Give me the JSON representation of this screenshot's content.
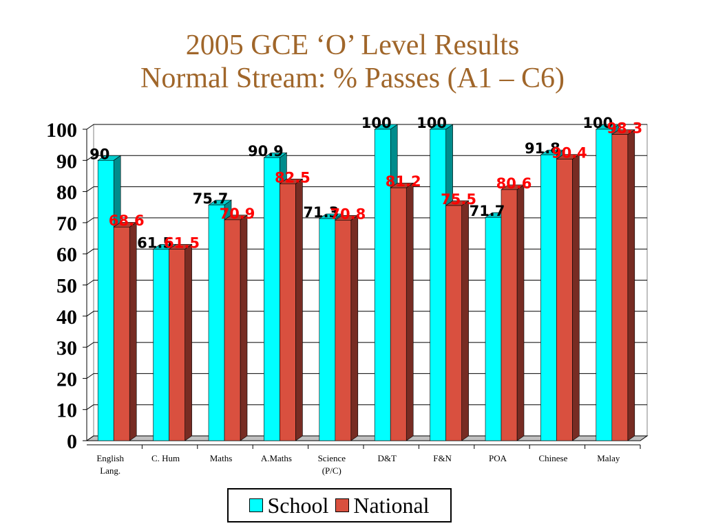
{
  "chart_data": {
    "type": "bar",
    "title": [
      "2005 GCE ‘O’ Level Results",
      "Normal Stream: % Passes (A1 – C6)"
    ],
    "categories": [
      [
        "English",
        "Lang."
      ],
      [
        "C. Hum"
      ],
      [
        "Maths"
      ],
      [
        "A.Maths"
      ],
      [
        "Science",
        "(P/C)"
      ],
      [
        "D&T"
      ],
      [
        "F&N"
      ],
      [
        "POA"
      ],
      [
        "Chinese"
      ],
      [
        "Malay"
      ]
    ],
    "series": [
      {
        "name": "School",
        "values": [
          90,
          61.5,
          75.7,
          90.9,
          71.3,
          100,
          100,
          71.7,
          91.8,
          100
        ],
        "color": "#00ffff",
        "label_color": "#000000"
      },
      {
        "name": "National",
        "values": [
          68.6,
          61.5,
          70.9,
          82.5,
          70.8,
          81.2,
          75.5,
          80.6,
          90.4,
          98.3
        ],
        "color": "#d9503f",
        "label_color": "#ff0000"
      }
    ],
    "ylim": [
      0,
      100
    ],
    "yticks": [
      0,
      10,
      20,
      30,
      40,
      50,
      60,
      70,
      80,
      90,
      100
    ],
    "grid": true,
    "legend": "bottom"
  }
}
